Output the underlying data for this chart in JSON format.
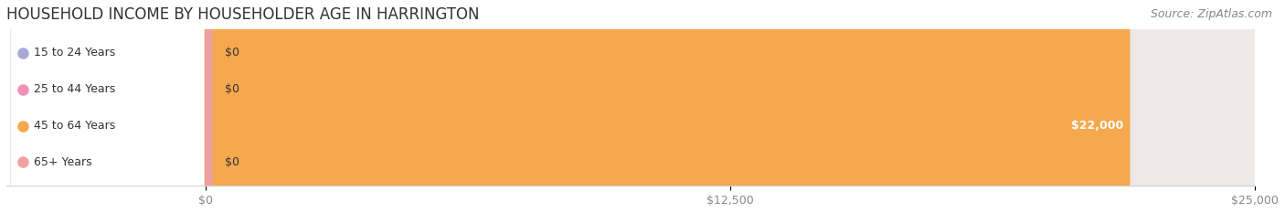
{
  "title": "HOUSEHOLD INCOME BY HOUSEHOLDER AGE IN HARRINGTON",
  "source": "Source: ZipAtlas.com",
  "categories": [
    "15 to 24 Years",
    "25 to 44 Years",
    "45 to 64 Years",
    "65+ Years"
  ],
  "values": [
    0,
    0,
    22000,
    0
  ],
  "bar_colors": [
    "#a8a8d8",
    "#f090b8",
    "#f5a84e",
    "#f0a0a0"
  ],
  "row_bg_colors": [
    "#e8e8f0",
    "#f0e8f0",
    "#f0ece8",
    "#f0e8e8"
  ],
  "xlim_max": 25000,
  "xticks": [
    0,
    12500,
    25000
  ],
  "xtick_labels": [
    "$0",
    "$12,500",
    "$25,000"
  ],
  "value_labels": [
    "$0",
    "$0",
    "$22,000",
    "$0"
  ],
  "title_fontsize": 12,
  "source_fontsize": 9,
  "background_color": "#ffffff",
  "label_box_color": "#ffffff",
  "grid_color": "#d0d0d0",
  "tick_color": "#888888",
  "text_color": "#333333",
  "source_color": "#888888"
}
